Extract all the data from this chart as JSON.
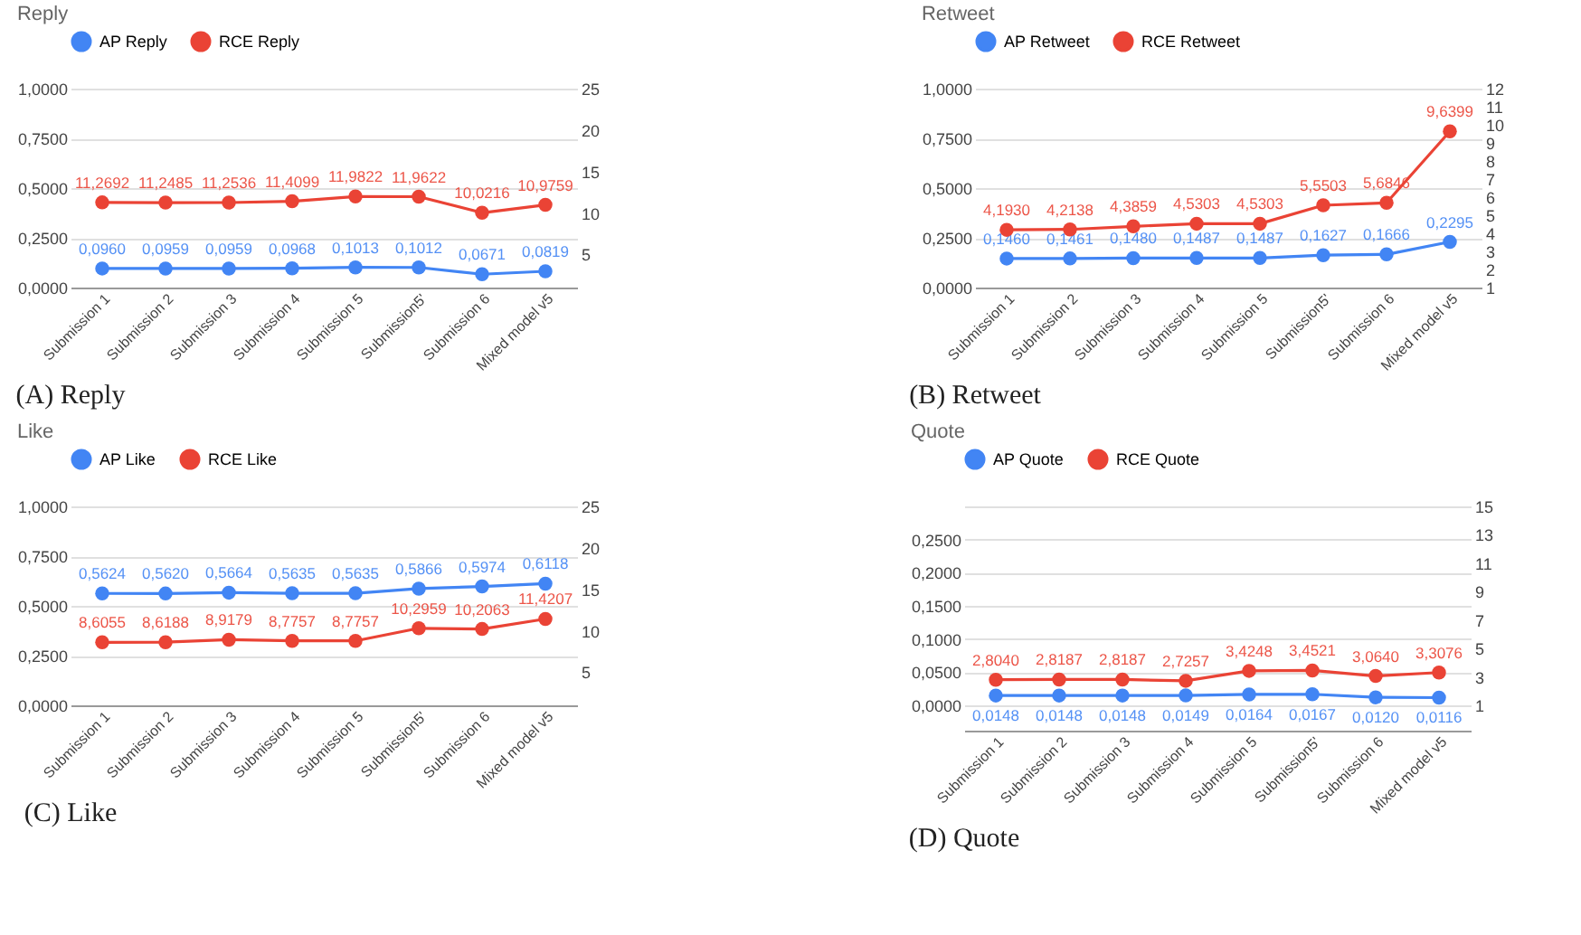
{
  "chart_data": [
    {
      "type": "line",
      "title": "Reply",
      "annotations": [
        "(A) Reply"
      ],
      "categories": [
        "Submission 1",
        "Submission 2",
        "Submission 3",
        "Submission 4",
        "Submission 5",
        "Submission5'",
        "Submission 6",
        "Mixed model v5"
      ],
      "series": [
        {
          "name": "AP Reply",
          "color": "#4285f4",
          "values": [
            0.096,
            0.0959,
            0.0959,
            0.0968,
            0.1013,
            0.1012,
            0.0671,
            0.0819
          ],
          "value_labels": [
            "0,0960",
            "0,0959",
            "0,0959",
            "0,0968",
            "0,1013",
            "0,1012",
            "0,0671",
            "0,0819"
          ]
        },
        {
          "name": "RCE Reply",
          "color": "#ea4335",
          "axis": "y2",
          "values": [
            11.2692,
            11.2485,
            11.2536,
            11.4099,
            11.9822,
            11.9622,
            10.0216,
            10.9759
          ],
          "value_labels": [
            "11,2692",
            "11,2485",
            "11,2536",
            "11,4099",
            "11,9822",
            "11,9622",
            "10,0216",
            "10,9759"
          ]
        }
      ],
      "ylim": [
        0,
        1
      ],
      "yticks": [
        {
          "value": 0,
          "label": "0,0000"
        },
        {
          "value": 0.25,
          "label": "0,2500"
        },
        {
          "value": 0.5,
          "label": "0,5000"
        },
        {
          "value": 0.75,
          "label": "0,7500"
        },
        {
          "value": 1,
          "label": "1,0000"
        }
      ],
      "y2lim": [
        1,
        25
      ],
      "y2ticks": [
        5,
        10,
        15,
        20,
        25
      ],
      "grid": "y",
      "legend": "top",
      "marker": "circle"
    },
    {
      "type": "line",
      "title": "Retweet",
      "annotations": [
        "(B) Retweet"
      ],
      "categories": [
        "Submission 1",
        "Submission 2",
        "Submission 3",
        "Submission 4",
        "Submission 5",
        "Submission5'",
        "Submission 6",
        "Mixed model v5"
      ],
      "series": [
        {
          "name": "AP Retweet",
          "color": "#4285f4",
          "values": [
            0.146,
            0.1461,
            0.148,
            0.1487,
            0.1487,
            0.1627,
            0.1666,
            0.2295
          ],
          "value_labels": [
            "0,1460",
            "0,1461",
            "0,1480",
            "0,1487",
            "0,1487",
            "0,1627",
            "0,1666",
            "0,2295"
          ]
        },
        {
          "name": "RCE Retweet",
          "color": "#ea4335",
          "axis": "y2",
          "values": [
            4.193,
            4.2138,
            4.3859,
            4.5303,
            4.5303,
            5.5503,
            5.6846,
            9.6399
          ],
          "value_labels": [
            "4,1930",
            "4,2138",
            "4,3859",
            "4,5303",
            "4,5303",
            "5,5503",
            "5,6846",
            "9,6399"
          ]
        }
      ],
      "ylim": [
        0,
        1
      ],
      "yticks": [
        {
          "value": 0,
          "label": "0,0000"
        },
        {
          "value": 0.25,
          "label": "0,2500"
        },
        {
          "value": 0.5,
          "label": "0,5000"
        },
        {
          "value": 0.75,
          "label": "0,7500"
        },
        {
          "value": 1,
          "label": "1,0000"
        }
      ],
      "y2lim": [
        1,
        12
      ],
      "y2ticks": [
        1,
        2,
        3,
        4,
        5,
        6,
        7,
        8,
        9,
        10,
        11,
        12
      ],
      "grid": "y",
      "legend": "top",
      "marker": "circle"
    },
    {
      "type": "line",
      "title": "Like",
      "annotations": [
        "(C) Like"
      ],
      "categories": [
        "Submission 1",
        "Submission 2",
        "Submission 3",
        "Submission 4",
        "Submission 5",
        "Submission5'",
        "Submission 6",
        "Mixed model v5"
      ],
      "series": [
        {
          "name": "AP Like",
          "color": "#4285f4",
          "values": [
            0.5624,
            0.562,
            0.5664,
            0.5635,
            0.5635,
            0.5866,
            0.5974,
            0.6118
          ],
          "value_labels": [
            "0,5624",
            "0,5620",
            "0,5664",
            "0,5635",
            "0,5635",
            "0,5866",
            "0,5974",
            "0,6118"
          ]
        },
        {
          "name": "RCE Like",
          "color": "#ea4335",
          "axis": "y2",
          "values": [
            8.6055,
            8.6188,
            8.9179,
            8.7757,
            8.7757,
            10.2959,
            10.2063,
            11.4207
          ],
          "value_labels": [
            "8,6055",
            "8,6188",
            "8,9179",
            "8,7757",
            "8,7757",
            "10,2959",
            "10,2063",
            "11,4207"
          ]
        }
      ],
      "ylim": [
        0,
        1
      ],
      "yticks": [
        {
          "value": 0,
          "label": "0,0000"
        },
        {
          "value": 0.25,
          "label": "0,2500"
        },
        {
          "value": 0.5,
          "label": "0,5000"
        },
        {
          "value": 0.75,
          "label": "0,7500"
        },
        {
          "value": 1,
          "label": "1,0000"
        }
      ],
      "y2lim": [
        1,
        25
      ],
      "y2ticks": [
        5,
        10,
        15,
        20,
        25
      ],
      "grid": "y",
      "legend": "top",
      "marker": "circle"
    },
    {
      "type": "line",
      "title": "Quote",
      "annotations": [
        "(D) Quote"
      ],
      "categories": [
        "Submission 1",
        "Submission 2",
        "Submission 3",
        "Submission 4",
        "Submission 5",
        "Submission5'",
        "Submission 6",
        "Mixed model v5"
      ],
      "series": [
        {
          "name": "AP Quote",
          "color": "#4285f4",
          "values": [
            0.0148,
            0.0148,
            0.0148,
            0.0149,
            0.0164,
            0.0167,
            0.012,
            0.0116
          ],
          "value_labels": [
            "0,0148",
            "0,0148",
            "0,0148",
            "0,0149",
            "0,0164",
            "0,0167",
            "0,0120",
            "0,0116"
          ]
        },
        {
          "name": "RCE Quote",
          "color": "#ea4335",
          "axis": "y2",
          "values": [
            2.804,
            2.8187,
            2.8187,
            2.7257,
            3.4248,
            3.4521,
            3.064,
            3.3076
          ],
          "value_labels": [
            "2,8040",
            "2,8187",
            "2,8187",
            "2,7257",
            "3,4248",
            "3,4521",
            "3,0640",
            "3,3076"
          ]
        }
      ],
      "ylim": [
        0,
        0.3
      ],
      "yticks": [
        {
          "value": 0,
          "label": "0,0000"
        },
        {
          "value": 0.05,
          "label": "0,0500"
        },
        {
          "value": 0.1,
          "label": "0,1000"
        },
        {
          "value": 0.15,
          "label": "0,1500"
        },
        {
          "value": 0.2,
          "label": "0,2000"
        },
        {
          "value": 0.25,
          "label": "0,2500"
        },
        {
          "value": 0.3,
          "label": null
        }
      ],
      "y2lim": [
        1,
        15
      ],
      "y2ticks": [
        1,
        3,
        5,
        7,
        9,
        11,
        13,
        15
      ],
      "grid": "y",
      "legend": "top",
      "marker": "circle"
    }
  ]
}
